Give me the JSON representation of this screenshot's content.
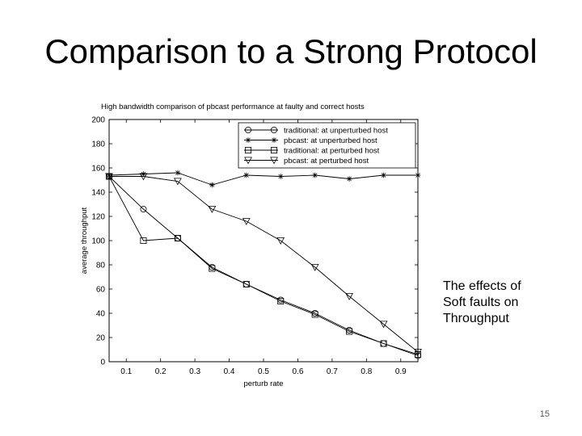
{
  "slide": {
    "title": "Comparison to a Strong Protocol",
    "caption": [
      "The effects of",
      "Soft faults on",
      "Throughput"
    ],
    "page_number": "15"
  },
  "chart_data": {
    "type": "line",
    "title": "High bandwidth comparison of pbcast performance at faulty and correct hosts",
    "xlabel": "perturb rate",
    "ylabel": "average throughput",
    "xlim": [
      0.05,
      0.95
    ],
    "ylim": [
      0,
      200
    ],
    "xticks": [
      0.1,
      0.2,
      0.3,
      0.4,
      0.5,
      0.6,
      0.7,
      0.8,
      0.9
    ],
    "xtick_labels": [
      "0.1",
      "0.2",
      "0.3",
      "0.4",
      "0.5",
      "0.6",
      "0.7",
      "0.8",
      "0.9"
    ],
    "yticks": [
      0,
      20,
      40,
      60,
      80,
      100,
      120,
      140,
      160,
      180,
      200
    ],
    "ytick_labels": [
      "0",
      "20",
      "40",
      "60",
      "80",
      "100",
      "120",
      "140",
      "160",
      "180",
      "200"
    ],
    "legend_position": "top-right",
    "x": [
      0.05,
      0.15,
      0.25,
      0.35,
      0.45,
      0.55,
      0.65,
      0.75,
      0.85,
      0.95
    ],
    "series": [
      {
        "name": "traditional: at unperturbed host",
        "marker": "circle",
        "values": [
          153,
          126,
          102,
          78,
          64,
          51,
          40,
          26,
          15,
          5
        ]
      },
      {
        "name": "pbcast: at unperturbed host",
        "marker": "star",
        "values": [
          154,
          155,
          156,
          146,
          154,
          153,
          154,
          151,
          154,
          154
        ]
      },
      {
        "name": "traditional: at perturbed host",
        "marker": "square",
        "values": [
          153,
          100,
          102,
          77,
          64,
          50,
          39,
          25,
          15,
          6
        ]
      },
      {
        "name": "pbcast: at perturbed host",
        "marker": "triangle-down",
        "values": [
          153,
          153,
          149,
          126,
          116,
          100,
          78,
          54,
          31,
          8
        ]
      }
    ]
  }
}
